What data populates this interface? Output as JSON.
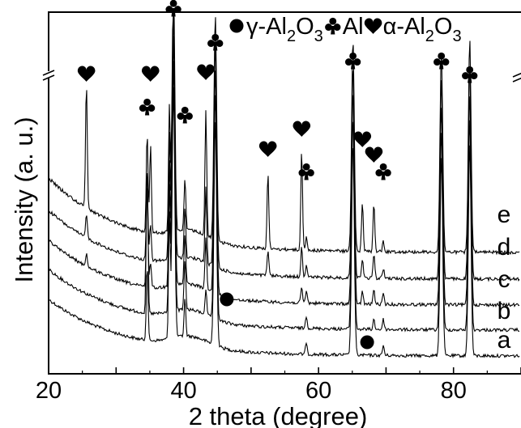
{
  "chart_data": {
    "type": "line",
    "xlabel": "2 theta (degree)",
    "ylabel": "Intensity (a. u.)",
    "xlim": [
      20,
      90
    ],
    "xticks": [
      20,
      40,
      60,
      80
    ],
    "grid": false,
    "legend_position": "top",
    "legend": [
      {
        "symbol": "circle",
        "prefix": "γ",
        "formula": "-Al2O3",
        "parts": [
          "-Al",
          "2",
          "O",
          "3"
        ]
      },
      {
        "symbol": "club",
        "prefix": "",
        "formula": "Al",
        "parts": [
          "Al",
          "",
          "",
          ""
        ]
      },
      {
        "symbol": "heart",
        "prefix": "α",
        "formula": "-Al2O3",
        "parts": [
          "-Al",
          "2",
          "O",
          "3"
        ]
      }
    ],
    "phases": [
      {
        "symbol": "heart",
        "phase": "α-Al2O3",
        "two_theta": [
          25.6,
          35.1,
          43.3,
          52.5,
          57.5,
          66.5,
          68.2
        ]
      },
      {
        "symbol": "club",
        "phase": "Al",
        "two_theta": [
          34.6,
          38.5,
          40.2,
          44.7,
          58.2,
          65.1,
          69.6,
          78.2,
          82.4
        ]
      },
      {
        "symbol": "circle",
        "phase": "γ-Al2O3",
        "two_theta": [
          46.4,
          67.2
        ]
      }
    ],
    "series": [
      {
        "name": "a",
        "peaks": [
          {
            "x": 34.6,
            "h": 0.3
          },
          {
            "x": 37.9,
            "h": 0.5
          },
          {
            "x": 38.5,
            "h": 1.0
          },
          {
            "x": 40.2,
            "h": 0.15
          },
          {
            "x": 44.7,
            "h": 0.9
          },
          {
            "x": 58.2,
            "h": 0.05
          },
          {
            "x": 65.1,
            "h": 0.85
          },
          {
            "x": 69.6,
            "h": 0.04
          },
          {
            "x": 78.2,
            "h": 0.8
          },
          {
            "x": 82.4,
            "h": 0.85
          }
        ]
      },
      {
        "name": "b",
        "peaks": [
          {
            "x": 34.6,
            "h": 0.6
          },
          {
            "x": 37.9,
            "h": 0.5
          },
          {
            "x": 38.5,
            "h": 1.0
          },
          {
            "x": 40.2,
            "h": 0.2
          },
          {
            "x": 43.3,
            "h": 0.1
          },
          {
            "x": 44.7,
            "h": 0.9
          },
          {
            "x": 58.2,
            "h": 0.05
          },
          {
            "x": 65.1,
            "h": 0.85
          },
          {
            "x": 68.2,
            "h": 0.04
          },
          {
            "x": 69.6,
            "h": 0.04
          },
          {
            "x": 78.2,
            "h": 0.8
          },
          {
            "x": 82.4,
            "h": 0.85
          }
        ]
      },
      {
        "name": "c",
        "peaks": [
          {
            "x": 25.6,
            "h": 0.05
          },
          {
            "x": 34.6,
            "h": 0.4
          },
          {
            "x": 35.1,
            "h": 0.1
          },
          {
            "x": 37.9,
            "h": 0.5
          },
          {
            "x": 38.5,
            "h": 1.0
          },
          {
            "x": 40.2,
            "h": 0.2
          },
          {
            "x": 43.3,
            "h": 0.2
          },
          {
            "x": 44.7,
            "h": 0.9
          },
          {
            "x": 57.5,
            "h": 0.06
          },
          {
            "x": 58.2,
            "h": 0.05
          },
          {
            "x": 65.1,
            "h": 0.85
          },
          {
            "x": 66.5,
            "h": 0.05
          },
          {
            "x": 68.2,
            "h": 0.06
          },
          {
            "x": 69.6,
            "h": 0.04
          },
          {
            "x": 78.2,
            "h": 0.8
          },
          {
            "x": 82.4,
            "h": 0.85
          }
        ]
      },
      {
        "name": "d",
        "peaks": [
          {
            "x": 25.6,
            "h": 0.1
          },
          {
            "x": 34.6,
            "h": 0.3
          },
          {
            "x": 35.1,
            "h": 0.15
          },
          {
            "x": 37.9,
            "h": 0.5
          },
          {
            "x": 38.5,
            "h": 1.0
          },
          {
            "x": 40.2,
            "h": 0.2
          },
          {
            "x": 43.3,
            "h": 0.3
          },
          {
            "x": 44.7,
            "h": 0.9
          },
          {
            "x": 52.5,
            "h": 0.1
          },
          {
            "x": 57.5,
            "h": 0.12
          },
          {
            "x": 58.2,
            "h": 0.05
          },
          {
            "x": 65.1,
            "h": 0.85
          },
          {
            "x": 66.5,
            "h": 0.08
          },
          {
            "x": 68.2,
            "h": 0.1
          },
          {
            "x": 69.6,
            "h": 0.04
          },
          {
            "x": 78.2,
            "h": 0.8
          },
          {
            "x": 82.4,
            "h": 0.85
          }
        ]
      },
      {
        "name": "e",
        "peaks": [
          {
            "x": 25.6,
            "h": 0.5
          },
          {
            "x": 34.6,
            "h": 0.4
          },
          {
            "x": 35.1,
            "h": 0.35
          },
          {
            "x": 37.9,
            "h": 0.5
          },
          {
            "x": 38.5,
            "h": 1.0
          },
          {
            "x": 40.2,
            "h": 0.2
          },
          {
            "x": 43.3,
            "h": 0.5
          },
          {
            "x": 44.7,
            "h": 0.9
          },
          {
            "x": 52.5,
            "h": 0.3
          },
          {
            "x": 57.5,
            "h": 0.4
          },
          {
            "x": 58.2,
            "h": 0.05
          },
          {
            "x": 65.1,
            "h": 0.85
          },
          {
            "x": 66.5,
            "h": 0.2
          },
          {
            "x": 68.2,
            "h": 0.2
          },
          {
            "x": 69.6,
            "h": 0.04
          },
          {
            "x": 78.2,
            "h": 0.8
          },
          {
            "x": 82.4,
            "h": 0.85
          }
        ]
      }
    ]
  }
}
